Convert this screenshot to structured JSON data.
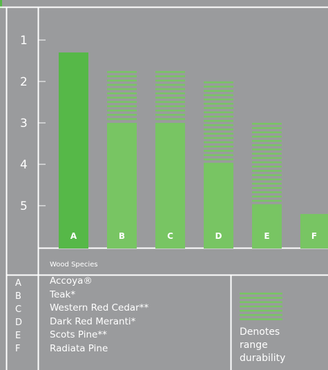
{
  "chart_data": {
    "type": "bar",
    "xlabel": "Wood Species",
    "ylabel": "",
    "y_axis": "durability class, 1 at top, 5 at bottom",
    "y_ticks": [
      "1",
      "2",
      "3",
      "4",
      "5"
    ],
    "categories": [
      "A",
      "B",
      "C",
      "D",
      "E",
      "F"
    ],
    "series": [
      {
        "values": [
          1.3,
          3,
          3,
          4,
          5,
          5.2
        ]
      }
    ],
    "range_top": [
      1.3,
      1.75,
      1.75,
      2.0,
      3.0,
      5.2
    ],
    "grid": false
  },
  "legend": {
    "items": [
      {
        "letter": "A",
        "name": "Accoya®"
      },
      {
        "letter": "B",
        "name": "Teak*"
      },
      {
        "letter": "C",
        "name": "Western Red Cedar**"
      },
      {
        "letter": "D",
        "name": "Dark Red Meranti*"
      },
      {
        "letter": "E",
        "name": "Scots Pine**"
      },
      {
        "letter": "F",
        "name": "Radiata Pine"
      }
    ],
    "range_note": [
      "Denotes",
      "range",
      "durability"
    ]
  },
  "colors": {
    "background": "#9a9b9d",
    "accoya_bar": "#56b848",
    "bar": "#78c563",
    "axis": "#ffffff",
    "accent_top": "#56b848"
  }
}
